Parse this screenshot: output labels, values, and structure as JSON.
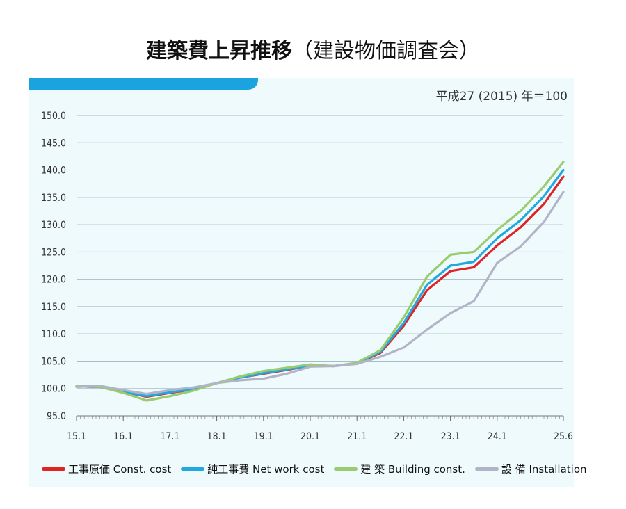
{
  "title": {
    "main": "建築費上昇推移",
    "sub": "（建設物価調査会）"
  },
  "base_note": "平成27 (2015) 年＝100",
  "colors": {
    "panel_bg": "#effafc",
    "tab": "#1aa3de",
    "gridline": "#a7bcc7"
  },
  "chart_data": {
    "type": "line",
    "x_tick_labels": [
      "15.1",
      "16.1",
      "17.1",
      "18.1",
      "19.1",
      "20.1",
      "21.1",
      "22.1",
      "23.1",
      "24.1",
      "25.6"
    ],
    "y_tick_labels": [
      "150.0",
      "145.0",
      "140.0",
      "135.0",
      "130.0",
      "125.0",
      "120.0",
      "115.0",
      "110.0",
      "105.0",
      "100.0",
      "95.0"
    ],
    "ylim": [
      95,
      150
    ],
    "grid": true,
    "legend_position": "bottom",
    "x_months": [
      "15.1",
      "15.7",
      "16.1",
      "16.7",
      "17.1",
      "17.7",
      "18.1",
      "18.7",
      "19.1",
      "19.7",
      "20.1",
      "20.7",
      "21.1",
      "21.7",
      "22.1",
      "22.7",
      "23.1",
      "23.7",
      "24.1",
      "24.7",
      "25.1",
      "25.6"
    ],
    "series": [
      {
        "name": "工事原価 Const. cost",
        "color": "#e02424",
        "values": [
          100.4,
          100.3,
          99.4,
          98.5,
          99.2,
          99.8,
          101.0,
          102.0,
          102.7,
          103.4,
          104.2,
          104.1,
          104.6,
          106.5,
          111.5,
          118.0,
          121.5,
          122.2,
          126.2,
          129.5,
          133.8,
          138.8
        ]
      },
      {
        "name": "純工事費 Net work cost",
        "color": "#1fa9e0",
        "values": [
          100.4,
          100.3,
          99.4,
          98.6,
          99.3,
          99.9,
          101.0,
          102.0,
          102.8,
          103.5,
          104.2,
          104.1,
          104.6,
          106.7,
          112.0,
          119.0,
          122.5,
          123.2,
          127.5,
          130.8,
          135.2,
          140.0
        ]
      },
      {
        "name": "建 築 Building const.",
        "color": "#98cc6e",
        "values": [
          100.5,
          100.3,
          99.2,
          97.8,
          98.6,
          99.6,
          101.0,
          102.2,
          103.2,
          103.8,
          104.4,
          104.1,
          104.7,
          107.0,
          113.0,
          120.5,
          124.5,
          125.0,
          129.0,
          132.5,
          137.0,
          141.5
        ]
      },
      {
        "name": "設 備 Installation",
        "color": "#b3b3c8",
        "values": [
          100.3,
          100.5,
          99.7,
          99.0,
          99.7,
          100.2,
          101.0,
          101.5,
          101.8,
          102.7,
          104.0,
          104.1,
          104.5,
          105.8,
          107.5,
          110.8,
          113.8,
          116.0,
          123.0,
          126.0,
          130.5,
          136.0
        ]
      }
    ]
  }
}
